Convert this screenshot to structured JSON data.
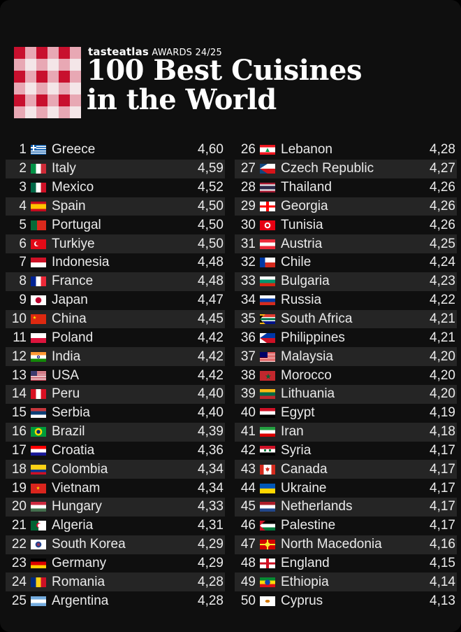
{
  "header": {
    "brand_name": "tasteatlas",
    "brand_suffix": "AWARDS 24/25",
    "title_line1": "100 Best Cuisines",
    "title_line2": "in the World"
  },
  "colors": {
    "logo_red": "#c8102e",
    "logo_pink": "#e8a8b4",
    "logo_white": "#f4e6e8",
    "row_alt": "#252525",
    "background": "#0f0f0f"
  },
  "left_column": [
    {
      "rank": "1",
      "country": "Greece",
      "score": "4,60",
      "flag": "greece-flag"
    },
    {
      "rank": "2",
      "country": "Italy",
      "score": "4,59",
      "flag": "italy-flag"
    },
    {
      "rank": "3",
      "country": "Mexico",
      "score": "4,52",
      "flag": "mexico-flag"
    },
    {
      "rank": "4",
      "country": "Spain",
      "score": "4,50",
      "flag": "spain-flag"
    },
    {
      "rank": "5",
      "country": "Portugal",
      "score": "4,50",
      "flag": "portugal-flag"
    },
    {
      "rank": "6",
      "country": "Turkiye",
      "score": "4,50",
      "flag": "turkiye-flag"
    },
    {
      "rank": "7",
      "country": "Indonesia",
      "score": "4,48",
      "flag": "indonesia-flag"
    },
    {
      "rank": "8",
      "country": "France",
      "score": "4,48",
      "flag": "france-flag"
    },
    {
      "rank": "9",
      "country": "Japan",
      "score": "4,47",
      "flag": "japan-flag"
    },
    {
      "rank": "10",
      "country": "China",
      "score": "4,45",
      "flag": "china-flag"
    },
    {
      "rank": "11",
      "country": "Poland",
      "score": "4,42",
      "flag": "poland-flag"
    },
    {
      "rank": "12",
      "country": "India",
      "score": "4,42",
      "flag": "india-flag"
    },
    {
      "rank": "13",
      "country": "USA",
      "score": "4,42",
      "flag": "usa-flag"
    },
    {
      "rank": "14",
      "country": "Peru",
      "score": "4,40",
      "flag": "peru-flag"
    },
    {
      "rank": "15",
      "country": "Serbia",
      "score": "4,40",
      "flag": "serbia-flag"
    },
    {
      "rank": "16",
      "country": "Brazil",
      "score": "4,39",
      "flag": "brazil-flag"
    },
    {
      "rank": "17",
      "country": "Croatia",
      "score": "4,36",
      "flag": "croatia-flag"
    },
    {
      "rank": "18",
      "country": "Colombia",
      "score": "4,34",
      "flag": "colombia-flag"
    },
    {
      "rank": "19",
      "country": "Vietnam",
      "score": "4,34",
      "flag": "vietnam-flag"
    },
    {
      "rank": "20",
      "country": "Hungary",
      "score": "4,33",
      "flag": "hungary-flag"
    },
    {
      "rank": "21",
      "country": "Algeria",
      "score": "4,31",
      "flag": "algeria-flag"
    },
    {
      "rank": "22",
      "country": "South Korea",
      "score": "4,29",
      "flag": "south-korea-flag"
    },
    {
      "rank": "23",
      "country": "Germany",
      "score": "4,29",
      "flag": "germany-flag"
    },
    {
      "rank": "24",
      "country": "Romania",
      "score": "4,28",
      "flag": "romania-flag"
    },
    {
      "rank": "25",
      "country": "Argentina",
      "score": "4,28",
      "flag": "argentina-flag"
    }
  ],
  "right_column": [
    {
      "rank": "26",
      "country": "Lebanon",
      "score": "4,28",
      "flag": "lebanon-flag"
    },
    {
      "rank": "27",
      "country": "Czech Republic",
      "score": "4,27",
      "flag": "czech-flag"
    },
    {
      "rank": "28",
      "country": "Thailand",
      "score": "4,26",
      "flag": "thailand-flag"
    },
    {
      "rank": "29",
      "country": "Georgia",
      "score": "4,26",
      "flag": "georgia-flag"
    },
    {
      "rank": "30",
      "country": "Tunisia",
      "score": "4,26",
      "flag": "tunisia-flag"
    },
    {
      "rank": "31",
      "country": "Austria",
      "score": "4,25",
      "flag": "austria-flag"
    },
    {
      "rank": "32",
      "country": "Chile",
      "score": "4,24",
      "flag": "chile-flag"
    },
    {
      "rank": "33",
      "country": "Bulgaria",
      "score": "4,23",
      "flag": "bulgaria-flag"
    },
    {
      "rank": "34",
      "country": "Russia",
      "score": "4,22",
      "flag": "russia-flag"
    },
    {
      "rank": "35",
      "country": "South Africa",
      "score": "4,21",
      "flag": "south-africa-flag"
    },
    {
      "rank": "36",
      "country": "Philippines",
      "score": "4,21",
      "flag": "philippines-flag"
    },
    {
      "rank": "37",
      "country": "Malaysia",
      "score": "4,20",
      "flag": "malaysia-flag"
    },
    {
      "rank": "38",
      "country": "Morocco",
      "score": "4,20",
      "flag": "morocco-flag"
    },
    {
      "rank": "39",
      "country": "Lithuania",
      "score": "4,20",
      "flag": "lithuania-flag"
    },
    {
      "rank": "40",
      "country": "Egypt",
      "score": "4,19",
      "flag": "egypt-flag"
    },
    {
      "rank": "41",
      "country": "Iran",
      "score": "4,18",
      "flag": "iran-flag"
    },
    {
      "rank": "42",
      "country": "Syria",
      "score": "4,17",
      "flag": "syria-flag"
    },
    {
      "rank": "43",
      "country": "Canada",
      "score": "4,17",
      "flag": "canada-flag"
    },
    {
      "rank": "44",
      "country": "Ukraine",
      "score": "4,17",
      "flag": "ukraine-flag"
    },
    {
      "rank": "45",
      "country": "Netherlands",
      "score": "4,17",
      "flag": "netherlands-flag"
    },
    {
      "rank": "46",
      "country": "Palestine",
      "score": "4,17",
      "flag": "palestine-flag"
    },
    {
      "rank": "47",
      "country": "North Macedonia",
      "score": "4,16",
      "flag": "north-macedonia-flag"
    },
    {
      "rank": "48",
      "country": "England",
      "score": "4,15",
      "flag": "england-flag"
    },
    {
      "rank": "49",
      "country": "Ethiopia",
      "score": "4,14",
      "flag": "ethiopia-flag"
    },
    {
      "rank": "50",
      "country": "Cyprus",
      "score": "4,13",
      "flag": "cyprus-flag"
    }
  ]
}
